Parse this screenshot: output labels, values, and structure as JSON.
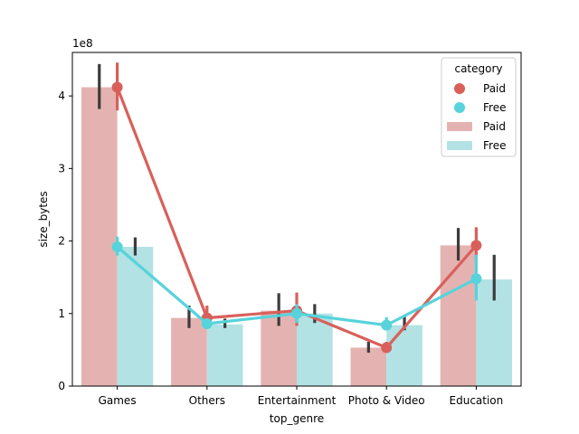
{
  "chart_data": {
    "type": "bar",
    "xlabel": "top_genre",
    "ylabel": "size_bytes",
    "y_offset_label": "1e8",
    "y_scale": 100000000,
    "ylim": [
      0,
      460000000
    ],
    "yticks": [
      0,
      100000000,
      200000000,
      300000000,
      400000000
    ],
    "ytick_labels": [
      "0",
      "1",
      "2",
      "3",
      "4"
    ],
    "categories": [
      "Games",
      "Others",
      "Entertainment",
      "Photo & Video",
      "Education"
    ],
    "bar_series": [
      {
        "name": "Paid",
        "color": "#e4b3b1",
        "values": [
          412000000,
          94000000,
          104000000,
          53000000,
          194000000
        ],
        "ci_low": [
          382000000,
          80000000,
          83000000,
          46000000,
          173000000
        ],
        "ci_high": [
          444000000,
          111000000,
          128000000,
          61000000,
          218000000
        ]
      },
      {
        "name": "Free",
        "color": "#b2e2e4",
        "values": [
          192000000,
          85000000,
          100000000,
          84000000,
          147000000
        ],
        "ci_low": [
          180000000,
          80000000,
          87000000,
          77000000,
          118000000
        ],
        "ci_high": [
          205000000,
          93000000,
          113000000,
          96000000,
          181000000
        ]
      }
    ],
    "point_series": [
      {
        "name": "Paid",
        "color": "#d9605a",
        "values": [
          412000000,
          94000000,
          104000000,
          53000000,
          194000000
        ],
        "ci_low": [
          380000000,
          80000000,
          83000000,
          46000000,
          172000000
        ],
        "ci_high": [
          446000000,
          111000000,
          129000000,
          61000000,
          219000000
        ]
      },
      {
        "name": "Free",
        "color": "#57d3db",
        "values": [
          192000000,
          86000000,
          100000000,
          84000000,
          148000000
        ],
        "ci_low": [
          180000000,
          80000000,
          87000000,
          77000000,
          118000000
        ],
        "ci_high": [
          206000000,
          92000000,
          113000000,
          95000000,
          181000000
        ]
      }
    ],
    "errorbar_color": "#3c3c3c",
    "legend": {
      "title": "category",
      "placement": "top-right",
      "entries": [
        {
          "label": "Paid",
          "kind": "point",
          "color": "#d9605a"
        },
        {
          "label": "Free",
          "kind": "point",
          "color": "#57d3db"
        },
        {
          "label": "Paid",
          "kind": "bar",
          "color": "#e4b3b1"
        },
        {
          "label": "Free",
          "kind": "bar",
          "color": "#b2e2e4"
        }
      ]
    },
    "grid": false
  }
}
